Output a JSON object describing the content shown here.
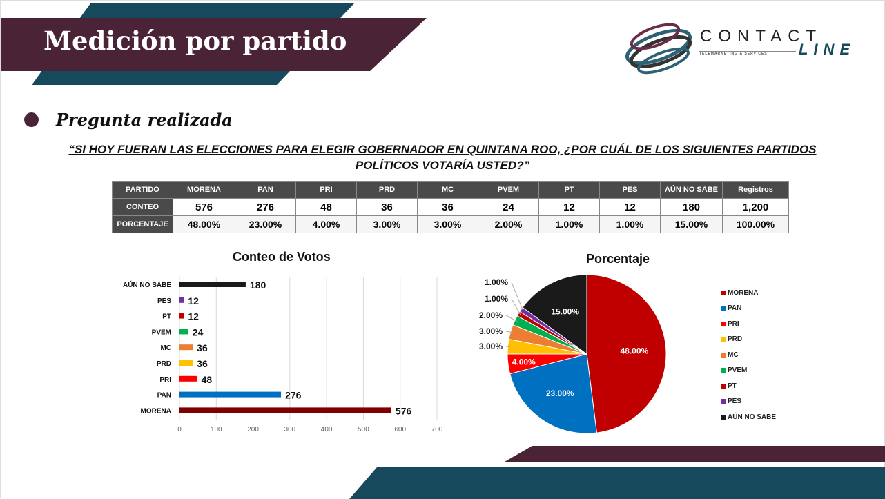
{
  "header": {
    "title": "Medición por partido"
  },
  "logo": {
    "brand": "CONTACT",
    "brand2": "LINE",
    "tagline": "TELEMARKETING & SERVICES"
  },
  "section": {
    "heading": "Pregunta realizada",
    "question": "“SI HOY FUERAN LAS ELECCIONES PARA ELEGIR GOBERNADOR EN QUINTANA ROO, ¿POR CUÁL DE LOS SIGUIENTES PARTIDOS POLÍTICOS VOTARÍA USTED?”"
  },
  "table": {
    "headers": [
      "PARTIDO",
      "MORENA",
      "PAN",
      "PRI",
      "PRD",
      "MC",
      "PVEM",
      "PT",
      "PES",
      "AÚN NO SABE",
      "Registros"
    ],
    "rows": [
      {
        "label": "CONTEO",
        "values": [
          "576",
          "276",
          "48",
          "36",
          "36",
          "24",
          "12",
          "12",
          "180",
          "1,200"
        ]
      },
      {
        "label": "PORCENTAJE",
        "values": [
          "48.00%",
          "23.00%",
          "4.00%",
          "3.00%",
          "3.00%",
          "2.00%",
          "1.00%",
          "1.00%",
          "15.00%",
          "100.00%"
        ]
      }
    ]
  },
  "chart_data": [
    {
      "type": "bar",
      "title": "Conteo de Votos",
      "orientation": "horizontal",
      "categories": [
        "MORENA",
        "PAN",
        "PRI",
        "PRD",
        "MC",
        "PVEM",
        "PT",
        "PES",
        "AÚN NO SABE"
      ],
      "values": [
        576,
        276,
        48,
        36,
        36,
        24,
        12,
        12,
        180
      ],
      "colors": [
        "#7f0000",
        "#0070c0",
        "#ff0000",
        "#ffc000",
        "#ed7d31",
        "#00b050",
        "#c00000",
        "#7030a0",
        "#1a1a1a"
      ],
      "xlim": [
        0,
        700
      ],
      "xticks": [
        0,
        100,
        200,
        300,
        400,
        500,
        600,
        700
      ],
      "grid": true
    },
    {
      "type": "pie",
      "title": "Porcentaje",
      "categories": [
        "MORENA",
        "PAN",
        "PRI",
        "PRD",
        "MC",
        "PVEM",
        "PT",
        "PES",
        "AÚN NO SABE"
      ],
      "values": [
        48,
        23,
        4,
        3,
        3,
        2,
        1,
        1,
        15
      ],
      "labels": [
        "48.00%",
        "23.00%",
        "4.00%",
        "3.00%",
        "3.00%",
        "2.00%",
        "1.00%",
        "1.00%",
        "15.00%"
      ],
      "colors": [
        "#c00000",
        "#0070c0",
        "#ff0000",
        "#ffc000",
        "#ed7d31",
        "#00b050",
        "#c00000",
        "#7030a0",
        "#1a1a1a"
      ],
      "legend": "right"
    }
  ]
}
